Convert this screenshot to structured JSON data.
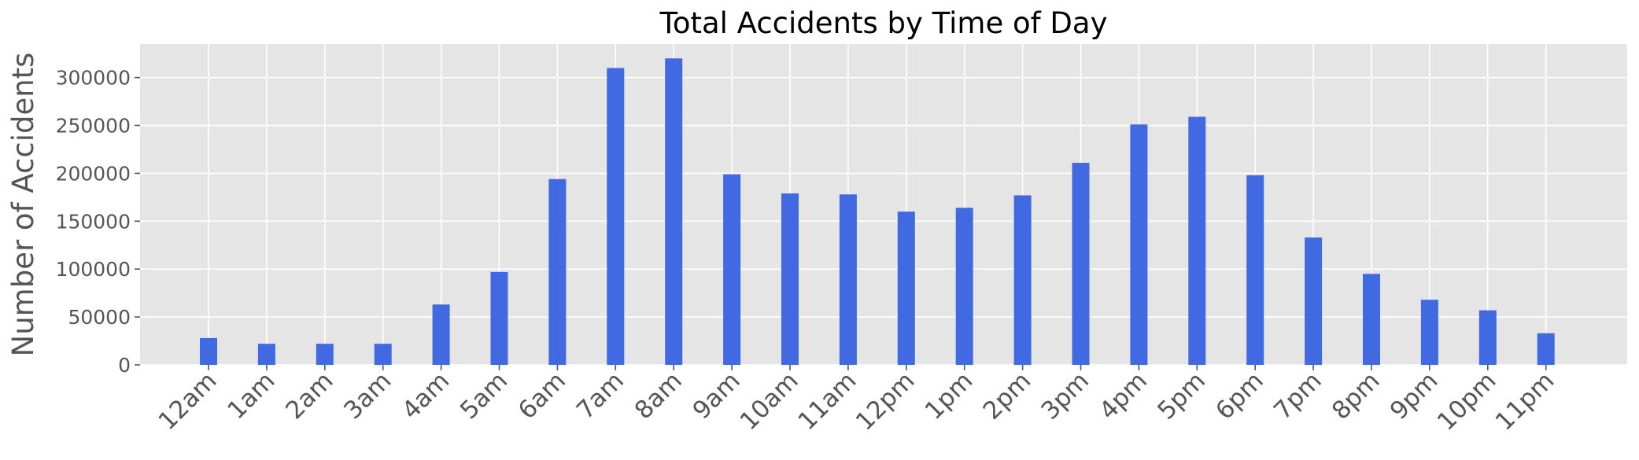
{
  "chart_data": {
    "type": "bar",
    "title": "Total Accidents by Time of Day",
    "xlabel": "",
    "ylabel": "Number of Accidents",
    "categories": [
      "12am",
      "1am",
      "2am",
      "3am",
      "4am",
      "5am",
      "6am",
      "7am",
      "8am",
      "9am",
      "10am",
      "11am",
      "12pm",
      "1pm",
      "2pm",
      "3pm",
      "4pm",
      "5pm",
      "6pm",
      "7pm",
      "8pm",
      "9pm",
      "10pm",
      "11pm"
    ],
    "values": [
      28000,
      22000,
      22000,
      22000,
      63000,
      97000,
      194000,
      310000,
      320000,
      199000,
      179000,
      178000,
      160000,
      164000,
      177000,
      211000,
      251000,
      259000,
      198000,
      133000,
      95000,
      68000,
      57000,
      33000
    ],
    "yticks": [
      0,
      50000,
      100000,
      150000,
      200000,
      250000,
      300000
    ],
    "ytick_labels": [
      "0",
      "50000",
      "100000",
      "150000",
      "200000",
      "250000",
      "300000"
    ],
    "ylim": [
      0,
      335000
    ],
    "grid": true,
    "colors": {
      "bar": "#4169e1",
      "plot_background": "#e5e5e5",
      "grid": "#ffffff"
    }
  }
}
